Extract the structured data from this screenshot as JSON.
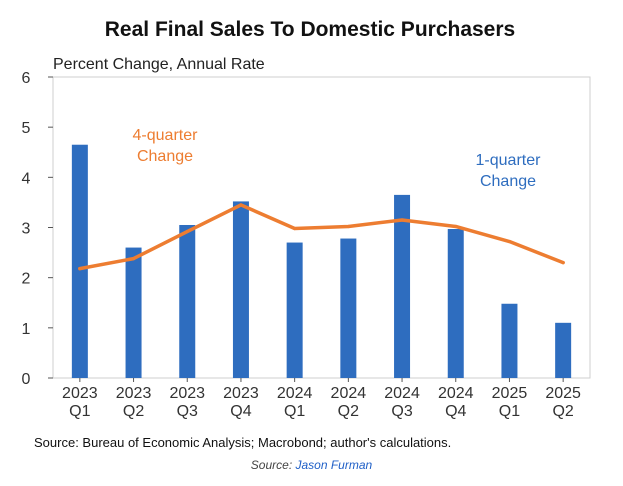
{
  "chart_data": {
    "type": "bar",
    "title": "Real Final Sales To Domestic Purchasers",
    "ylabel": "Percent Change, Annual Rate",
    "ylim": [
      0,
      6
    ],
    "yticks": [
      0,
      1,
      2,
      3,
      4,
      5,
      6
    ],
    "categories": [
      [
        "2023",
        "Q1"
      ],
      [
        "2023",
        "Q2"
      ],
      [
        "2023",
        "Q3"
      ],
      [
        "2023",
        "Q4"
      ],
      [
        "2024",
        "Q1"
      ],
      [
        "2024",
        "Q2"
      ],
      [
        "2024",
        "Q3"
      ],
      [
        "2024",
        "Q4"
      ],
      [
        "2025",
        "Q1"
      ],
      [
        "2025",
        "Q2"
      ]
    ],
    "series": [
      {
        "name": "1-quarter Change",
        "type": "bar",
        "color": "#2e6dbf",
        "values": [
          4.65,
          2.6,
          3.05,
          3.52,
          2.7,
          2.78,
          3.65,
          2.97,
          1.48,
          1.1
        ]
      },
      {
        "name": "4-quarter Change",
        "type": "line",
        "color": "#ed7d31",
        "values": [
          2.18,
          2.38,
          2.92,
          3.45,
          2.98,
          3.02,
          3.15,
          3.02,
          2.72,
          2.3
        ]
      }
    ],
    "annotations": [
      {
        "text": [
          "4-quarter",
          "Change"
        ],
        "color": "#ed7d31"
      },
      {
        "text": [
          "1-quarter",
          "Change"
        ],
        "color": "#2e6dbf"
      }
    ],
    "source": "Source: Bureau of Economic Analysis; Macrobond; author's calculations.",
    "grid": false,
    "legend": "none"
  },
  "credit": {
    "prefix": "Source: ",
    "name": "Jason Furman"
  }
}
